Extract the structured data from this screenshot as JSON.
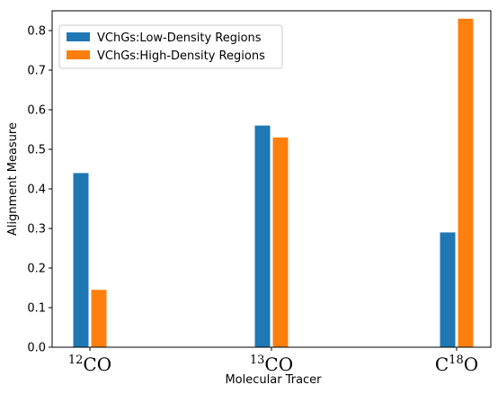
{
  "chart_data": {
    "type": "bar",
    "categories": [
      {
        "sup": "12",
        "pre": "",
        "post": "CO",
        "full": "12CO"
      },
      {
        "sup": "13",
        "pre": "",
        "post": "CO",
        "full": "13CO"
      },
      {
        "sup": "18",
        "pre": "C",
        "post": "O",
        "full": "C18O"
      }
    ],
    "series": [
      {
        "name": "VChGs:Low-Density Regions",
        "color": "#1f77b4",
        "values": [
          0.44,
          0.56,
          0.29
        ]
      },
      {
        "name": "VChGs:High-Density Regions",
        "color": "#ff7f0e",
        "values": [
          0.145,
          0.53,
          0.83
        ]
      }
    ],
    "xlabel": "Molecular Tracer",
    "ylabel": "Alignment Measure",
    "ylim": [
      0,
      0.85
    ],
    "yticks": [
      "0.0",
      "0.1",
      "0.2",
      "0.3",
      "0.4",
      "0.5",
      "0.6",
      "0.7",
      "0.8"
    ],
    "legend_position": "top-left",
    "grid": false
  }
}
